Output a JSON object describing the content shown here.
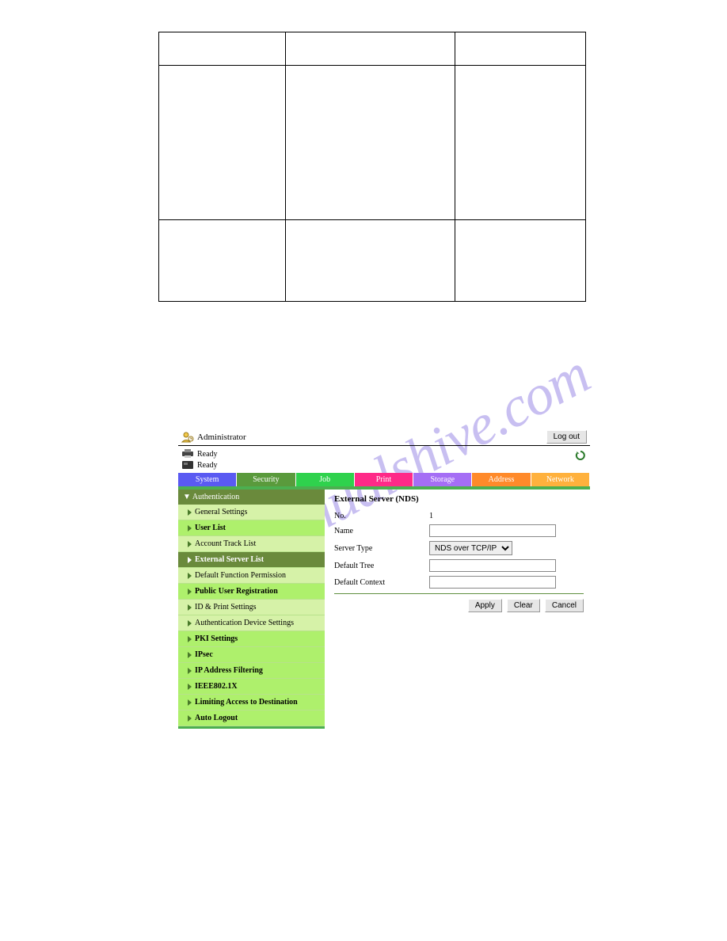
{
  "table": {
    "rows": 3,
    "cols": 3
  },
  "watermark_text": "manualshive.com",
  "topbar": {
    "admin_label": "Administrator",
    "logout_label": "Log out"
  },
  "status": {
    "item1": "Ready",
    "item2": "Ready"
  },
  "tabs": {
    "system": "System",
    "security": "Security",
    "job": "Job",
    "print": "Print",
    "storage": "Storage",
    "address": "Address",
    "network": "Network"
  },
  "sidebar": {
    "header": "▼ Authentication",
    "items": [
      {
        "label": "General Settings",
        "style": "light"
      },
      {
        "label": "User List",
        "style": "bright"
      },
      {
        "label": "Account Track List",
        "style": "light"
      },
      {
        "label": "External Server List",
        "style": "active"
      },
      {
        "label": "Default Function Permission",
        "style": "light"
      },
      {
        "label": "Public User Registration",
        "style": "bright"
      },
      {
        "label": "ID & Print Settings",
        "style": "light"
      },
      {
        "label": "Authentication Device Settings",
        "style": "light"
      },
      {
        "label": "PKI Settings",
        "style": "bright"
      },
      {
        "label": "IPsec",
        "style": "bright"
      },
      {
        "label": "IP Address Filtering",
        "style": "bright"
      },
      {
        "label": "IEEE802.1X",
        "style": "bright"
      },
      {
        "label": "Limiting Access to Destination",
        "style": "bright"
      },
      {
        "label": "Auto Logout",
        "style": "bright"
      }
    ]
  },
  "content": {
    "title": "External Server (NDS)",
    "no_label": "No.",
    "no_value": "1",
    "name_label": "Name",
    "name_value": "",
    "server_type_label": "Server Type",
    "server_type_value": "NDS over TCP/IP",
    "default_tree_label": "Default Tree",
    "default_tree_value": "",
    "default_context_label": "Default Context",
    "default_context_value": "",
    "apply_label": "Apply",
    "clear_label": "Clear",
    "cancel_label": "Cancel"
  },
  "colors": {
    "watermark": "#9c8ce6",
    "tab_system": "#5a5af2",
    "tab_security": "#5a9a3c",
    "tab_job": "#2fd24d",
    "tab_print": "#ff2a88",
    "tab_storage": "#a56ef5",
    "tab_address": "#ff8a2a",
    "tab_network": "#ffb13d",
    "menu_header": "#6a8a3c",
    "menu_light": "#d6f2a8",
    "menu_bright": "#aef06c",
    "green_bar": "#4caf50"
  }
}
